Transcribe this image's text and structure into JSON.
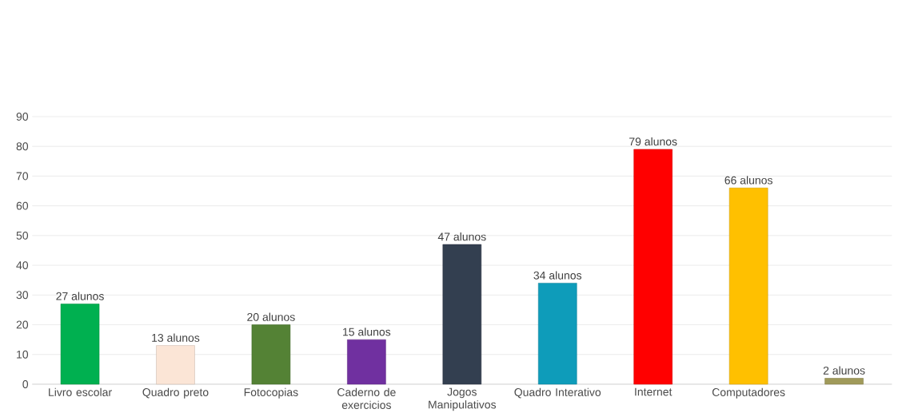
{
  "chart_data": {
    "type": "bar",
    "categories": [
      "Livro escolar",
      "Quadro preto",
      "Fotocopias",
      "Caderno de exercicios",
      "Jogos Manipulativos",
      "Quadro Interativo",
      "Internet",
      "Computadores",
      null
    ],
    "values": [
      27,
      13,
      20,
      15,
      47,
      34,
      79,
      66,
      2
    ],
    "colors": [
      "#00b050",
      "#fbe5d6",
      "#548235",
      "#7030a0",
      "#333f50",
      "#0e9cba",
      "#ff0000",
      "#ffc000",
      "#a09a5a"
    ],
    "value_labels": [
      "27 alunos",
      "13 alunos",
      "20 alunos",
      "15 alunos",
      "47 alunos",
      "34 alunos",
      "79 alunos",
      "66 alunos",
      "2 alunos"
    ],
    "ylim": [
      0,
      90
    ],
    "yticks": [
      0,
      10,
      20,
      30,
      40,
      50,
      60,
      70,
      80,
      90
    ],
    "grid": "y"
  }
}
